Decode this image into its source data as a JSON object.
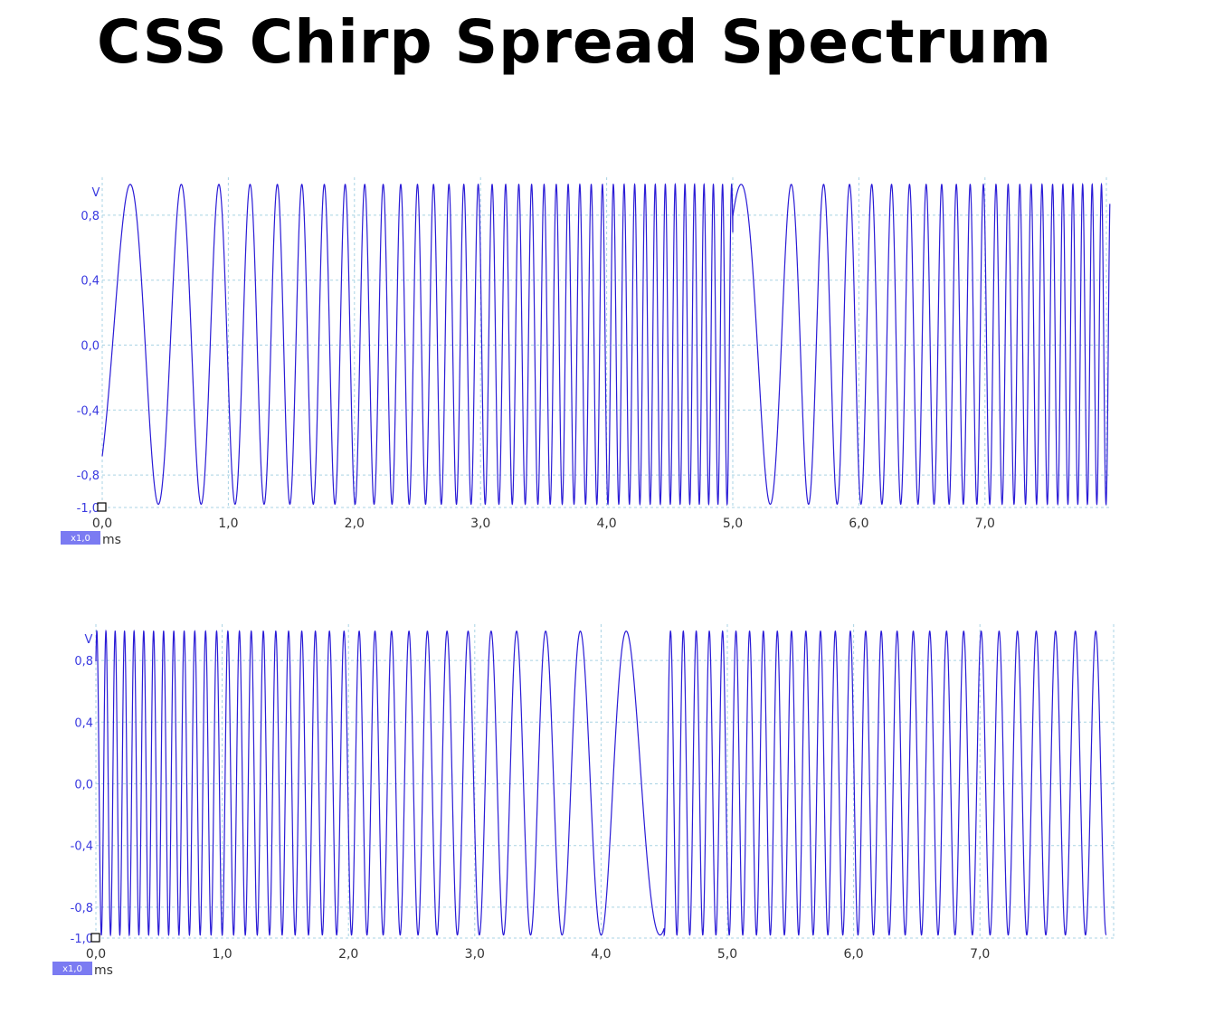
{
  "title": "CSS Chirp Spread Spectrum",
  "chart_data": [
    {
      "type": "line",
      "title": "",
      "y_unit": "V",
      "x_unit": "ms",
      "scale_badge": "x1,0",
      "xlim": [
        0,
        8.0
      ],
      "ylim": [
        -1.0,
        1.0
      ],
      "x_ticks": [
        "0,0",
        "1,0",
        "2,0",
        "3,0",
        "4,0",
        "5,0",
        "6,0",
        "7,0"
      ],
      "x_tick_values": [
        0,
        1,
        2,
        3,
        4,
        5,
        6,
        7
      ],
      "y_ticks": [
        "0,8",
        "0,4",
        "0,0",
        "-0,4",
        "-0,8",
        "-1,0"
      ],
      "y_tick_values": [
        0.8,
        0.4,
        0.0,
        -0.4,
        -0.8,
        -1.0
      ],
      "grid": true,
      "trace_color": "#2a1bd6",
      "signal": {
        "amplitude_peak": 1.0,
        "amplitude_trough": -1.0,
        "description_free": true,
        "segments": [
          {
            "t_start": 0.0,
            "t_end": 5.0,
            "freq_start_khz": 1.4,
            "freq_end_khz": 14.0,
            "start_value": -0.7
          },
          {
            "t_start": 5.0,
            "t_end": 7.99,
            "freq_start_khz": 1.4,
            "freq_end_khz": 14.0,
            "start_value": 0.8
          }
        ]
      }
    },
    {
      "type": "line",
      "title": "",
      "y_unit": "V",
      "x_unit": "ms",
      "scale_badge": "x1,0",
      "xlim": [
        0,
        8.0
      ],
      "ylim": [
        -1.0,
        1.0
      ],
      "x_ticks": [
        "0,0",
        "1,0",
        "2,0",
        "3,0",
        "4,0",
        "5,0",
        "6,0",
        "7,0"
      ],
      "x_tick_values": [
        0,
        1,
        2,
        3,
        4,
        5,
        6,
        7
      ],
      "y_ticks": [
        "0,8",
        "0,4",
        "0,0",
        "-0,4",
        "-0,8",
        "-1,0"
      ],
      "y_tick_values": [
        0.8,
        0.4,
        0.0,
        -0.4,
        -0.8,
        -1.0
      ],
      "grid": true,
      "trace_color": "#2a1bd6",
      "signal": {
        "amplitude_peak": 1.0,
        "amplitude_trough": -1.0,
        "segments": [
          {
            "t_start": 0.0,
            "t_end": 4.5,
            "freq_start_khz": 14.0,
            "freq_end_khz": 1.4,
            "start_value": 0.8
          },
          {
            "t_start": 4.5,
            "t_end": 8.0,
            "freq_start_khz": 10.0,
            "freq_end_khz": 6.0,
            "start_value": -1.0
          }
        ]
      }
    }
  ]
}
